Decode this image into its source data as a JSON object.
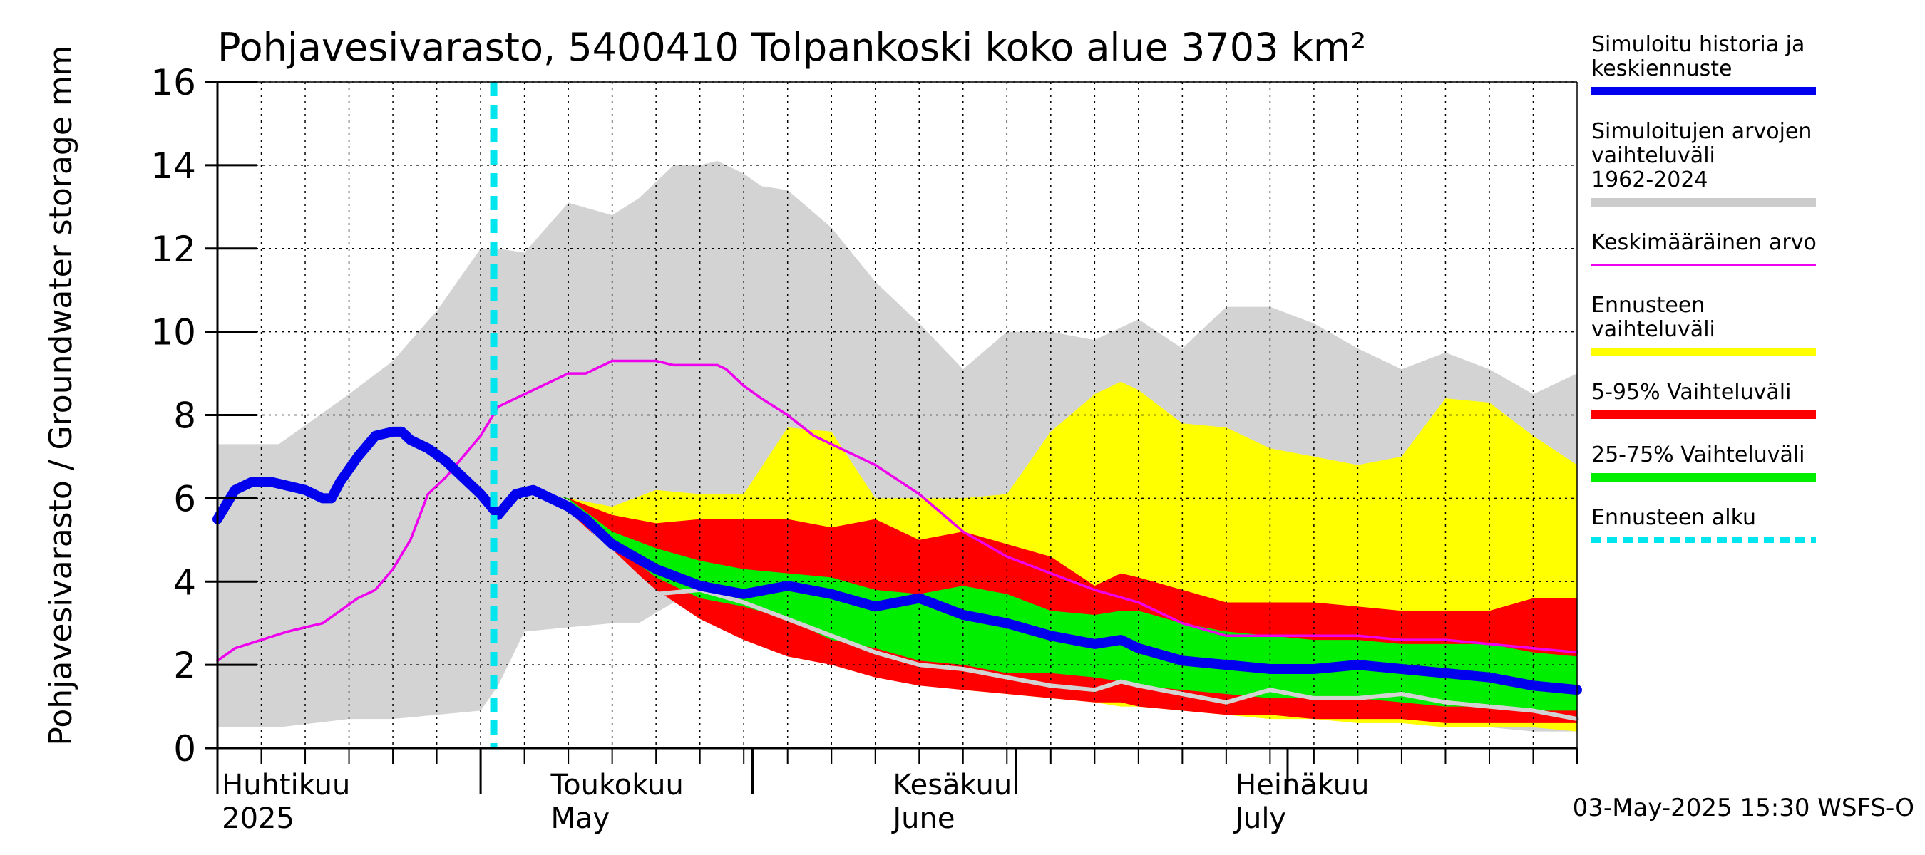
{
  "chart_data": {
    "type": "area",
    "title": "Pohjavesivarasto, 5400410 Tolpankoski koko alue 3703 km²",
    "ylabel": "Pohjavesivarasto / Groundwater storage   mm",
    "ylim": [
      0,
      16
    ],
    "yticks": [
      0,
      2,
      4,
      6,
      8,
      10,
      12,
      14,
      16
    ],
    "x_domain_days": [
      0,
      155
    ],
    "x_note": "x values are days from 1 April 2025",
    "forecast_start_day": 31.5,
    "month_labels": [
      {
        "day": 0.5,
        "fi": "Huhtikuu",
        "en": "2025"
      },
      {
        "day": 38,
        "fi": "Toukokuu",
        "en": "May"
      },
      {
        "day": 77,
        "fi": "Kesäkuu",
        "en": "June"
      },
      {
        "day": 116,
        "fi": "Heinäkuu",
        "en": "July"
      }
    ],
    "month_boundaries": [
      0,
      30,
      61,
      91,
      122
    ],
    "footer": "03-May-2025 15:30 WSFS-O",
    "legend": [
      {
        "label": "Simuloitu historia ja keskiennuste",
        "color": "#0000ee",
        "style": "thick"
      },
      {
        "label": "Simuloitujen arvojen vaihteluväli 1962-2024",
        "color": "#cccccc",
        "style": "band"
      },
      {
        "label": "Keskimääräinen arvo",
        "color": "#ee00ee",
        "style": "line"
      },
      {
        "label": "Ennusteen vaihteluväli",
        "color": "#ffff00",
        "style": "band"
      },
      {
        "label": "5-95% Vaihteluväli",
        "color": "#ff0000",
        "style": "band"
      },
      {
        "label": "25-75% Vaihteluväli",
        "color": "#00ee00",
        "style": "band"
      },
      {
        "label": "Ennusteen alku",
        "color": "#00e5ee",
        "style": "dashed"
      }
    ],
    "series": [
      {
        "name": "Simuloitujen arvojen vaihteluväli 1962-2024",
        "kind": "band",
        "color": "#d3d3d3",
        "x": [
          0,
          7,
          15,
          20,
          25,
          30,
          32,
          35,
          40,
          45,
          48,
          52,
          55,
          57,
          60,
          62,
          65,
          70,
          75,
          80,
          85,
          90,
          95,
          100,
          105,
          110,
          115,
          120,
          125,
          130,
          135,
          140,
          145,
          150,
          155
        ],
        "upper": [
          7.3,
          7.3,
          8.5,
          9.3,
          10.5,
          12.0,
          12.0,
          11.9,
          13.1,
          12.8,
          13.2,
          14.0,
          14.0,
          14.1,
          13.8,
          13.5,
          13.4,
          12.5,
          11.2,
          10.2,
          9.1,
          10.0,
          10.0,
          9.8,
          10.3,
          9.6,
          10.6,
          10.6,
          10.2,
          9.6,
          9.1,
          9.5,
          9.1,
          8.5,
          9.0
        ],
        "lower": [
          0.5,
          0.5,
          0.7,
          0.7,
          0.8,
          0.9,
          1.5,
          2.8,
          2.9,
          3.0,
          3.0,
          3.5,
          3.5,
          3.5,
          3.2,
          3.0,
          2.8,
          2.5,
          2.2,
          1.9,
          1.6,
          1.5,
          1.3,
          1.2,
          1.0,
          0.9,
          0.8,
          0.8,
          0.7,
          0.7,
          0.6,
          0.6,
          0.5,
          0.4,
          0.4
        ]
      },
      {
        "name": "Ennusteen vaihteluväli",
        "kind": "band",
        "color": "#ffff00",
        "x": [
          38,
          40,
          45,
          50,
          55,
          60,
          65,
          70,
          75,
          80,
          85,
          90,
          95,
          100,
          103,
          105,
          110,
          115,
          120,
          125,
          130,
          135,
          140,
          145,
          150,
          155
        ],
        "upper": [
          6.1,
          6.0,
          5.8,
          6.2,
          6.1,
          6.1,
          7.7,
          7.6,
          6.0,
          6.0,
          6.0,
          6.1,
          7.6,
          8.5,
          8.8,
          8.6,
          7.8,
          7.7,
          7.2,
          7.0,
          6.8,
          7.0,
          8.4,
          8.3,
          7.5,
          6.8
        ],
        "lower": [
          6.1,
          5.8,
          4.8,
          4.0,
          3.3,
          2.7,
          2.3,
          2.0,
          1.8,
          1.6,
          1.4,
          1.3,
          1.2,
          1.1,
          1.0,
          1.0,
          0.9,
          0.8,
          0.7,
          0.7,
          0.6,
          0.6,
          0.5,
          0.5,
          0.5,
          0.4
        ]
      },
      {
        "name": "5-95% Vaihteluväli",
        "kind": "band",
        "color": "#ff0000",
        "x": [
          38,
          40,
          45,
          50,
          55,
          60,
          65,
          70,
          75,
          80,
          85,
          90,
          95,
          100,
          103,
          105,
          110,
          115,
          120,
          125,
          130,
          135,
          140,
          145,
          150,
          155
        ],
        "upper": [
          6.1,
          6.0,
          5.6,
          5.4,
          5.5,
          5.5,
          5.5,
          5.3,
          5.5,
          5.0,
          5.2,
          4.9,
          4.6,
          3.9,
          4.2,
          4.1,
          3.8,
          3.5,
          3.5,
          3.5,
          3.4,
          3.3,
          3.3,
          3.3,
          3.6,
          3.6
        ],
        "lower": [
          6.1,
          5.7,
          4.7,
          3.8,
          3.1,
          2.6,
          2.2,
          2.0,
          1.7,
          1.5,
          1.4,
          1.3,
          1.2,
          1.1,
          1.1,
          1.0,
          0.9,
          0.8,
          0.8,
          0.7,
          0.7,
          0.7,
          0.6,
          0.6,
          0.6,
          0.6
        ]
      },
      {
        "name": "25-75% Vaihteluväli",
        "kind": "band",
        "color": "#00ee00",
        "x": [
          38,
          40,
          45,
          50,
          55,
          60,
          65,
          70,
          75,
          80,
          85,
          90,
          95,
          100,
          103,
          105,
          110,
          115,
          120,
          125,
          130,
          135,
          140,
          145,
          150,
          155
        ],
        "upper": [
          6.1,
          6.0,
          5.2,
          4.8,
          4.5,
          4.3,
          4.2,
          4.1,
          3.8,
          3.7,
          3.9,
          3.7,
          3.3,
          3.2,
          3.3,
          3.3,
          3.0,
          2.8,
          2.7,
          2.6,
          2.6,
          2.5,
          2.5,
          2.5,
          2.3,
          2.2
        ],
        "lower": [
          6.1,
          5.9,
          4.9,
          4.1,
          3.6,
          3.4,
          3.1,
          2.6,
          2.4,
          2.1,
          2.0,
          1.8,
          1.8,
          1.7,
          1.6,
          1.5,
          1.4,
          1.3,
          1.2,
          1.2,
          1.2,
          1.1,
          1.0,
          1.0,
          0.9,
          0.9
        ]
      },
      {
        "name": "Alin ennuste",
        "kind": "line",
        "color": "#d3d3d3",
        "x": [
          38,
          40,
          45,
          50,
          55,
          60,
          65,
          70,
          75,
          80,
          85,
          90,
          95,
          100,
          103,
          105,
          110,
          115,
          120,
          125,
          130,
          135,
          140,
          145,
          150,
          155
        ],
        "values": [
          6.1,
          5.9,
          4.7,
          3.7,
          3.8,
          3.5,
          3.1,
          2.7,
          2.3,
          2.0,
          1.9,
          1.7,
          1.5,
          1.4,
          1.6,
          1.5,
          1.3,
          1.1,
          1.4,
          1.2,
          1.2,
          1.3,
          1.1,
          1.0,
          0.9,
          0.7
        ]
      },
      {
        "name": "Keskimääräinen arvo",
        "kind": "line",
        "color": "#ee00ee",
        "x": [
          0,
          2,
          5,
          8,
          10,
          12,
          14,
          16,
          18,
          20,
          22,
          24,
          26,
          28,
          30,
          32,
          35,
          38,
          40,
          42,
          45,
          48,
          50,
          52,
          55,
          57,
          58,
          60,
          62,
          65,
          68,
          70,
          72,
          75,
          80,
          85,
          90,
          95,
          100,
          105,
          110,
          115,
          120,
          125,
          130,
          135,
          140,
          145,
          150,
          155
        ],
        "values": [
          2.1,
          2.4,
          2.6,
          2.8,
          2.9,
          3.0,
          3.3,
          3.6,
          3.8,
          4.3,
          5.0,
          6.1,
          6.5,
          7.0,
          7.5,
          8.2,
          8.5,
          8.8,
          9.0,
          9.0,
          9.3,
          9.3,
          9.3,
          9.2,
          9.2,
          9.2,
          9.1,
          8.7,
          8.4,
          8.0,
          7.5,
          7.3,
          7.1,
          6.8,
          6.1,
          5.2,
          4.6,
          4.2,
          3.8,
          3.5,
          3.0,
          2.7,
          2.7,
          2.7,
          2.7,
          2.6,
          2.6,
          2.5,
          2.4,
          2.3
        ]
      },
      {
        "name": "Simuloitu historia ja keskiennuste",
        "kind": "line",
        "color": "#0000ee",
        "x": [
          0,
          2,
          4,
          6,
          8,
          10,
          12,
          13,
          14,
          16,
          18,
          20,
          21,
          22,
          24,
          26,
          28,
          30,
          32,
          34,
          36,
          38,
          40,
          42,
          45,
          50,
          55,
          60,
          65,
          70,
          75,
          80,
          85,
          90,
          95,
          100,
          103,
          105,
          110,
          115,
          120,
          125,
          130,
          135,
          140,
          145,
          150,
          155
        ],
        "values": [
          5.5,
          6.2,
          6.4,
          6.4,
          6.3,
          6.2,
          6.0,
          6.0,
          6.4,
          7.0,
          7.5,
          7.6,
          7.6,
          7.4,
          7.2,
          6.9,
          6.5,
          6.1,
          5.6,
          6.1,
          6.2,
          6.0,
          5.8,
          5.5,
          4.9,
          4.3,
          3.9,
          3.7,
          3.9,
          3.7,
          3.4,
          3.6,
          3.2,
          3.0,
          2.7,
          2.5,
          2.6,
          2.4,
          2.1,
          2.0,
          1.9,
          1.9,
          2.0,
          1.9,
          1.8,
          1.7,
          1.5,
          1.4
        ]
      }
    ]
  }
}
